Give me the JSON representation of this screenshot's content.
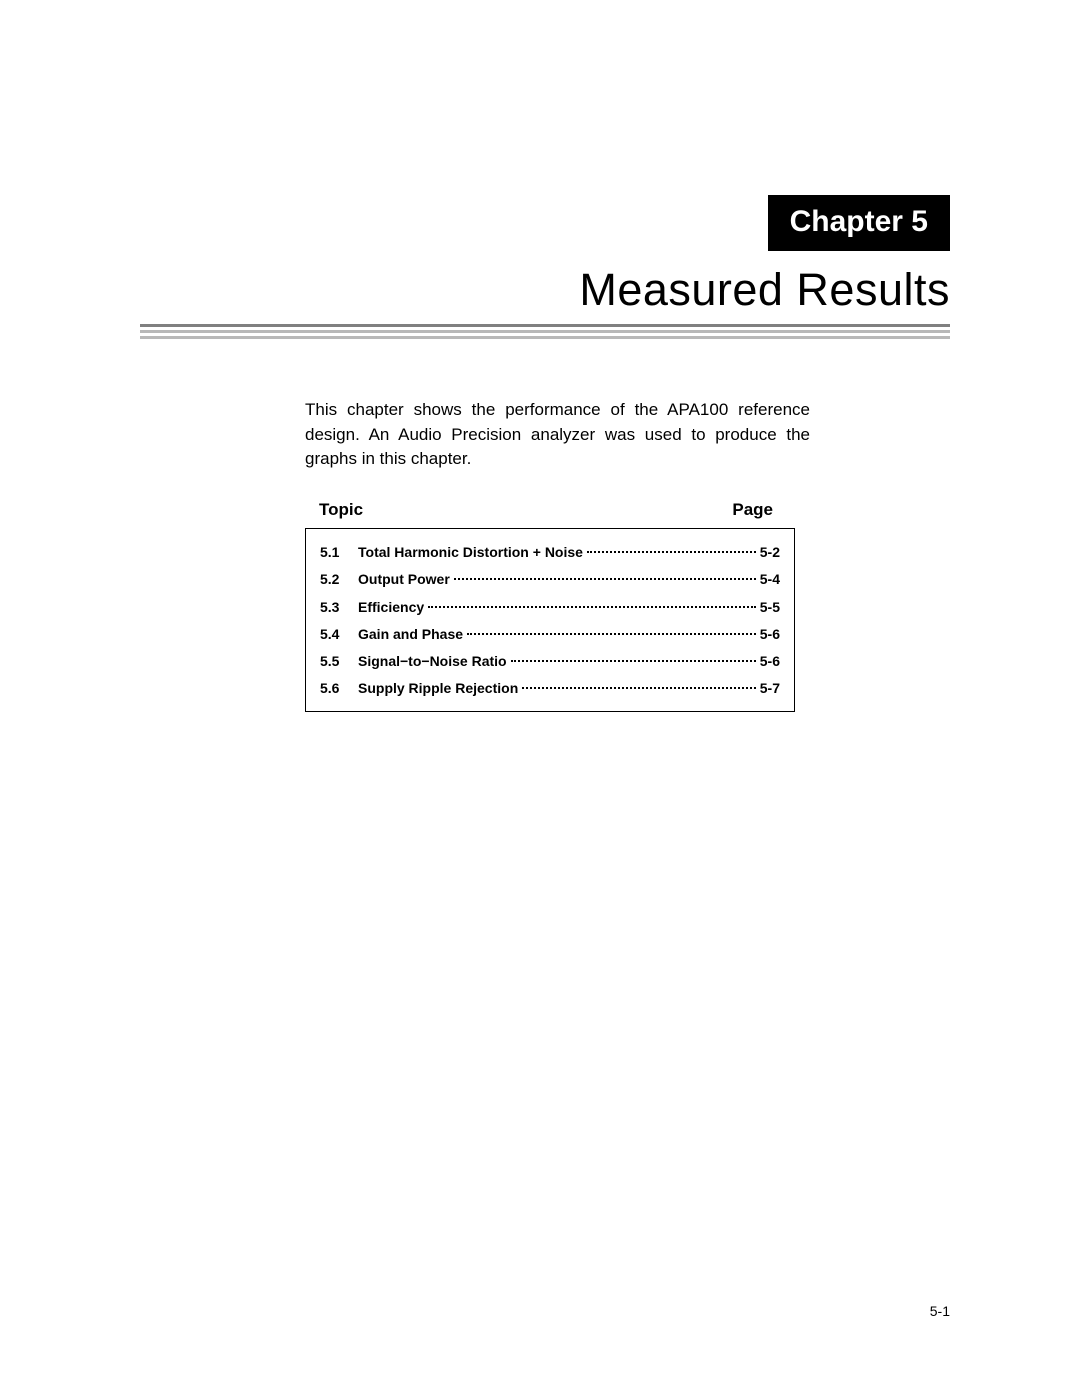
{
  "chapter": {
    "badge": "Chapter 5",
    "title": "Measured Results"
  },
  "intro": "This chapter shows the performance of the APA100 reference design. An Audio Precision analyzer was used to produce the graphs in this chapter.",
  "toc": {
    "head_left": "Topic",
    "head_right": "Page",
    "rows": [
      {
        "num": "5.1",
        "title": "Total Harmonic Distortion + Noise",
        "page": "5-2"
      },
      {
        "num": "5.2",
        "title": "Output Power",
        "page": "5-4"
      },
      {
        "num": "5.3",
        "title": "Efficiency",
        "page": "5-5"
      },
      {
        "num": "5.4",
        "title": "Gain and Phase",
        "page": "5-6"
      },
      {
        "num": "5.5",
        "title": "Signal−to−Noise Ratio",
        "page": "5-6"
      },
      {
        "num": "5.6",
        "title": "Supply Ripple Rejection",
        "page": "5-7"
      }
    ]
  },
  "footer": "5-1",
  "colors": {
    "black": "#000000",
    "white": "#ffffff",
    "rule_dark": "#808080",
    "rule_light": "#b8b8b8"
  },
  "fonts": {
    "body_size_pt": 12,
    "title_size_pt": 32,
    "badge_size_pt": 22,
    "toc_size_pt": 10
  }
}
